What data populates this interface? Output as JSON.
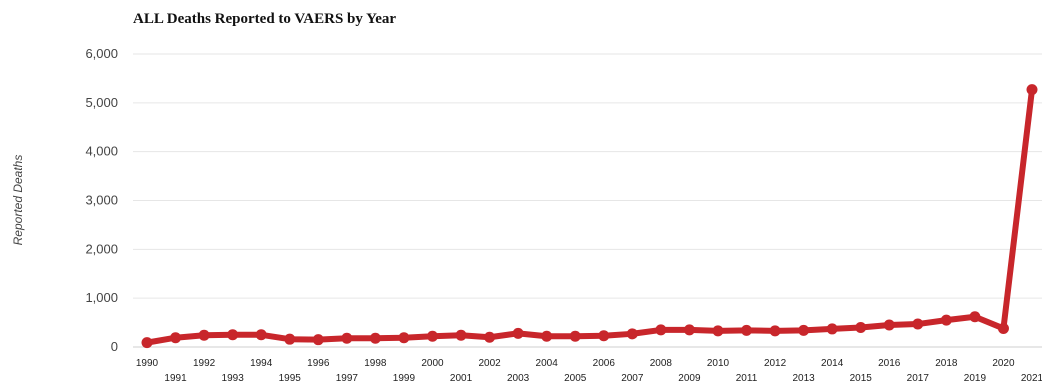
{
  "chart_data": {
    "type": "line",
    "title": "ALL Deaths Reported to VAERS by Year",
    "ylabel": "Reported Deaths",
    "xlabel": "",
    "ylim": [
      0,
      6000
    ],
    "yticks": [
      0,
      1000,
      2000,
      3000,
      4000,
      5000,
      6000
    ],
    "ytick_labels": [
      "0",
      "1,000",
      "2,000",
      "3,000",
      "4,000",
      "5,000",
      "6,000"
    ],
    "grid": true,
    "legend": "none",
    "line_color": "#c8262b",
    "x": [
      "1990",
      "1991",
      "1992",
      "1993",
      "1994",
      "1995",
      "1996",
      "1997",
      "1998",
      "1999",
      "2000",
      "2001",
      "2002",
      "2003",
      "2004",
      "2005",
      "2006",
      "2007",
      "2008",
      "2009",
      "2010",
      "2011",
      "2012",
      "2013",
      "2014",
      "2015",
      "2016",
      "2017",
      "2018",
      "2019",
      "2020",
      "2021"
    ],
    "series": [
      {
        "values": [
          90,
          190,
          240,
          250,
          250,
          160,
          150,
          180,
          180,
          190,
          220,
          240,
          200,
          280,
          220,
          220,
          230,
          270,
          350,
          350,
          330,
          340,
          330,
          340,
          370,
          400,
          450,
          470,
          550,
          620,
          380,
          5270
        ]
      }
    ]
  }
}
